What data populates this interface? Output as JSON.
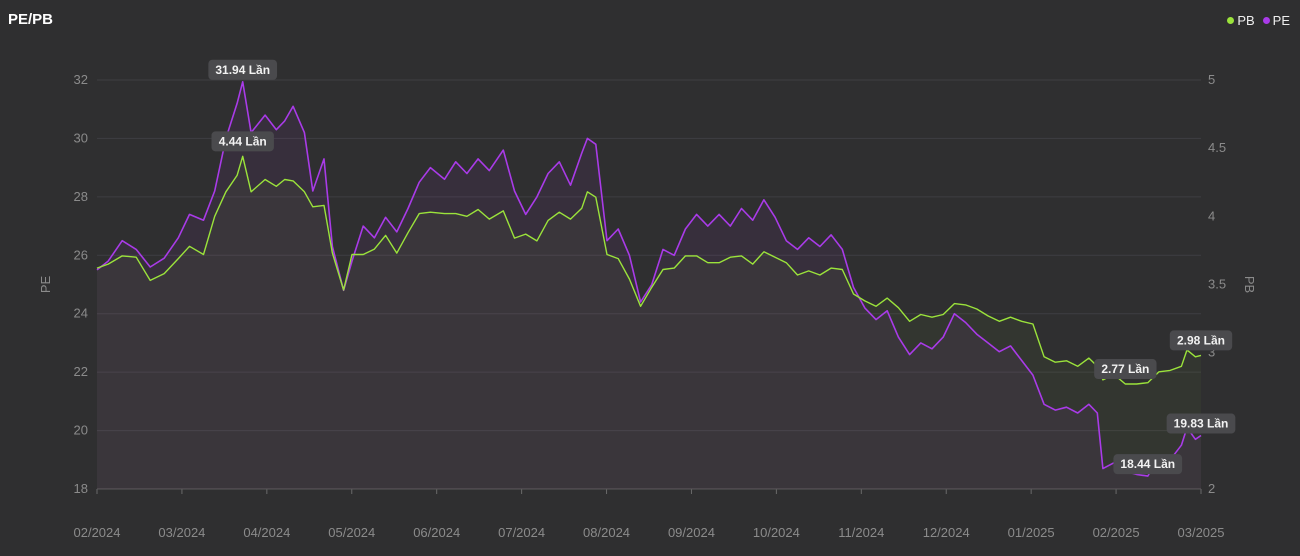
{
  "header": {
    "title": "PE/PB"
  },
  "colors": {
    "pb": "#9be33b",
    "pe": "#a93be8",
    "grid": "#3f3f42",
    "label_bg": "#4a4a4d",
    "background": "#2f2f30"
  },
  "chart_data": {
    "type": "line",
    "title": "PE/PB",
    "legend": {
      "placement": "top-right",
      "items": [
        "PB",
        "PE"
      ]
    },
    "y_left": {
      "label": "PE",
      "range": [
        18,
        32
      ],
      "ticks": [
        18,
        20,
        22,
        24,
        26,
        28,
        30,
        32
      ]
    },
    "y_right": {
      "label": "PB",
      "range": [
        2,
        5
      ],
      "ticks": [
        "2",
        "2.5",
        "3",
        "3.5",
        "4",
        "4.5",
        "5"
      ]
    },
    "x_ticks": [
      "02/2024",
      "03/2024",
      "04/2024",
      "05/2024",
      "06/2024",
      "07/2024",
      "08/2024",
      "09/2024",
      "10/2024",
      "11/2024",
      "12/2024",
      "01/2025",
      "02/2025",
      "03/2025"
    ],
    "x_range": [
      "2024-02-01",
      "2025-03-01"
    ],
    "grid": "horizontal",
    "series": [
      {
        "name": "PE",
        "axis": "left",
        "points": [
          [
            "2024-02-01",
            25.5
          ],
          [
            "2024-02-05",
            25.8
          ],
          [
            "2024-02-10",
            26.5
          ],
          [
            "2024-02-15",
            26.2
          ],
          [
            "2024-02-20",
            25.6
          ],
          [
            "2024-02-25",
            25.9
          ],
          [
            "2024-03-01",
            26.6
          ],
          [
            "2024-03-05",
            27.4
          ],
          [
            "2024-03-10",
            27.2
          ],
          [
            "2024-03-14",
            28.2
          ],
          [
            "2024-03-18",
            30.0
          ],
          [
            "2024-03-22",
            31.2
          ],
          [
            "2024-03-24",
            31.94
          ],
          [
            "2024-03-27",
            30.2
          ],
          [
            "2024-04-01",
            30.8
          ],
          [
            "2024-04-05",
            30.3
          ],
          [
            "2024-04-08",
            30.6
          ],
          [
            "2024-04-11",
            31.1
          ],
          [
            "2024-04-15",
            30.2
          ],
          [
            "2024-04-18",
            28.2
          ],
          [
            "2024-04-22",
            29.3
          ],
          [
            "2024-04-25",
            26.3
          ],
          [
            "2024-04-29",
            24.8
          ],
          [
            "2024-05-02",
            25.8
          ],
          [
            "2024-05-06",
            27.0
          ],
          [
            "2024-05-10",
            26.6
          ],
          [
            "2024-05-14",
            27.3
          ],
          [
            "2024-05-18",
            26.8
          ],
          [
            "2024-05-22",
            27.6
          ],
          [
            "2024-05-26",
            28.5
          ],
          [
            "2024-05-30",
            29.0
          ],
          [
            "2024-06-04",
            28.6
          ],
          [
            "2024-06-08",
            29.2
          ],
          [
            "2024-06-12",
            28.8
          ],
          [
            "2024-06-16",
            29.3
          ],
          [
            "2024-06-20",
            28.9
          ],
          [
            "2024-06-25",
            29.6
          ],
          [
            "2024-06-29",
            28.2
          ],
          [
            "2024-07-03",
            27.4
          ],
          [
            "2024-07-07",
            28.0
          ],
          [
            "2024-07-11",
            28.8
          ],
          [
            "2024-07-15",
            29.2
          ],
          [
            "2024-07-19",
            28.4
          ],
          [
            "2024-07-23",
            29.5
          ],
          [
            "2024-07-25",
            30.0
          ],
          [
            "2024-07-28",
            29.8
          ],
          [
            "2024-08-01",
            26.5
          ],
          [
            "2024-08-05",
            26.9
          ],
          [
            "2024-08-09",
            26.0
          ],
          [
            "2024-08-13",
            24.4
          ],
          [
            "2024-08-17",
            25.0
          ],
          [
            "2024-08-21",
            26.2
          ],
          [
            "2024-08-25",
            26.0
          ],
          [
            "2024-08-29",
            26.9
          ],
          [
            "2024-09-02",
            27.4
          ],
          [
            "2024-09-06",
            27.0
          ],
          [
            "2024-09-10",
            27.4
          ],
          [
            "2024-09-14",
            27.0
          ],
          [
            "2024-09-18",
            27.6
          ],
          [
            "2024-09-22",
            27.2
          ],
          [
            "2024-09-26",
            27.9
          ],
          [
            "2024-09-30",
            27.3
          ],
          [
            "2024-10-04",
            26.5
          ],
          [
            "2024-10-08",
            26.2
          ],
          [
            "2024-10-12",
            26.6
          ],
          [
            "2024-10-16",
            26.3
          ],
          [
            "2024-10-20",
            26.7
          ],
          [
            "2024-10-24",
            26.2
          ],
          [
            "2024-10-28",
            24.9
          ],
          [
            "2024-11-01",
            24.2
          ],
          [
            "2024-11-05",
            23.8
          ],
          [
            "2024-11-09",
            24.1
          ],
          [
            "2024-11-13",
            23.2
          ],
          [
            "2024-11-17",
            22.6
          ],
          [
            "2024-11-21",
            23.0
          ],
          [
            "2024-11-25",
            22.8
          ],
          [
            "2024-11-29",
            23.2
          ],
          [
            "2024-12-03",
            24.0
          ],
          [
            "2024-12-07",
            23.7
          ],
          [
            "2024-12-11",
            23.3
          ],
          [
            "2024-12-15",
            23.0
          ],
          [
            "2024-12-19",
            22.7
          ],
          [
            "2024-12-23",
            22.9
          ],
          [
            "2024-12-27",
            22.4
          ],
          [
            "2024-12-31",
            21.9
          ],
          [
            "2025-01-04",
            20.9
          ],
          [
            "2025-01-08",
            20.7
          ],
          [
            "2025-01-12",
            20.8
          ],
          [
            "2025-01-16",
            20.6
          ],
          [
            "2025-01-20",
            20.9
          ],
          [
            "2025-01-23",
            20.6
          ],
          [
            "2025-01-25",
            18.7
          ],
          [
            "2025-01-29",
            18.9
          ],
          [
            "2025-02-02",
            18.6
          ],
          [
            "2025-02-06",
            18.5
          ],
          [
            "2025-02-10",
            18.44
          ],
          [
            "2025-02-14",
            19.1
          ],
          [
            "2025-02-18",
            19.0
          ],
          [
            "2025-02-22",
            19.5
          ],
          [
            "2025-02-24",
            20.1
          ],
          [
            "2025-02-27",
            19.7
          ],
          [
            "2025-03-01",
            19.83
          ]
        ],
        "labels": [
          [
            "2024-03-24",
            "31.94 Lần"
          ],
          [
            "2025-02-10",
            "18.44 Lần"
          ],
          [
            "2025-03-01",
            "19.83 Lần"
          ]
        ]
      },
      {
        "name": "PB",
        "axis": "right",
        "points": [
          [
            "2024-02-01",
            3.62
          ],
          [
            "2024-02-05",
            3.65
          ],
          [
            "2024-02-10",
            3.71
          ],
          [
            "2024-02-15",
            3.7
          ],
          [
            "2024-02-20",
            3.53
          ],
          [
            "2024-02-25",
            3.58
          ],
          [
            "2024-03-01",
            3.69
          ],
          [
            "2024-03-05",
            3.78
          ],
          [
            "2024-03-10",
            3.72
          ],
          [
            "2024-03-14",
            4.0
          ],
          [
            "2024-03-18",
            4.18
          ],
          [
            "2024-03-22",
            4.3
          ],
          [
            "2024-03-24",
            4.44
          ],
          [
            "2024-03-27",
            4.18
          ],
          [
            "2024-04-01",
            4.27
          ],
          [
            "2024-04-05",
            4.22
          ],
          [
            "2024-04-08",
            4.27
          ],
          [
            "2024-04-11",
            4.26
          ],
          [
            "2024-04-15",
            4.18
          ],
          [
            "2024-04-18",
            4.07
          ],
          [
            "2024-04-22",
            4.08
          ],
          [
            "2024-04-25",
            3.73
          ],
          [
            "2024-04-29",
            3.46
          ],
          [
            "2024-05-02",
            3.72
          ],
          [
            "2024-05-06",
            3.72
          ],
          [
            "2024-05-10",
            3.76
          ],
          [
            "2024-05-14",
            3.86
          ],
          [
            "2024-05-18",
            3.73
          ],
          [
            "2024-05-22",
            3.88
          ],
          [
            "2024-05-26",
            4.02
          ],
          [
            "2024-05-30",
            4.03
          ],
          [
            "2024-06-04",
            4.02
          ],
          [
            "2024-06-08",
            4.02
          ],
          [
            "2024-06-12",
            4.0
          ],
          [
            "2024-06-16",
            4.05
          ],
          [
            "2024-06-20",
            3.98
          ],
          [
            "2024-06-25",
            4.04
          ],
          [
            "2024-06-29",
            3.84
          ],
          [
            "2024-07-03",
            3.87
          ],
          [
            "2024-07-07",
            3.82
          ],
          [
            "2024-07-11",
            3.97
          ],
          [
            "2024-07-15",
            4.03
          ],
          [
            "2024-07-19",
            3.98
          ],
          [
            "2024-07-23",
            4.06
          ],
          [
            "2024-07-25",
            4.18
          ],
          [
            "2024-07-28",
            4.14
          ],
          [
            "2024-08-01",
            3.72
          ],
          [
            "2024-08-05",
            3.69
          ],
          [
            "2024-08-09",
            3.54
          ],
          [
            "2024-08-13",
            3.34
          ],
          [
            "2024-08-17",
            3.48
          ],
          [
            "2024-08-21",
            3.61
          ],
          [
            "2024-08-25",
            3.62
          ],
          [
            "2024-08-29",
            3.71
          ],
          [
            "2024-09-02",
            3.71
          ],
          [
            "2024-09-06",
            3.66
          ],
          [
            "2024-09-10",
            3.66
          ],
          [
            "2024-09-14",
            3.7
          ],
          [
            "2024-09-18",
            3.71
          ],
          [
            "2024-09-22",
            3.65
          ],
          [
            "2024-09-26",
            3.74
          ],
          [
            "2024-09-30",
            3.7
          ],
          [
            "2024-10-04",
            3.66
          ],
          [
            "2024-10-08",
            3.57
          ],
          [
            "2024-10-12",
            3.6
          ],
          [
            "2024-10-16",
            3.57
          ],
          [
            "2024-10-20",
            3.62
          ],
          [
            "2024-10-24",
            3.61
          ],
          [
            "2024-10-28",
            3.43
          ],
          [
            "2024-11-01",
            3.38
          ],
          [
            "2024-11-05",
            3.34
          ],
          [
            "2024-11-09",
            3.4
          ],
          [
            "2024-11-13",
            3.33
          ],
          [
            "2024-11-17",
            3.23
          ],
          [
            "2024-11-21",
            3.28
          ],
          [
            "2024-11-25",
            3.26
          ],
          [
            "2024-11-29",
            3.28
          ],
          [
            "2024-12-03",
            3.36
          ],
          [
            "2024-12-07",
            3.35
          ],
          [
            "2024-12-11",
            3.32
          ],
          [
            "2024-12-15",
            3.27
          ],
          [
            "2024-12-19",
            3.23
          ],
          [
            "2024-12-23",
            3.26
          ],
          [
            "2024-12-27",
            3.23
          ],
          [
            "2024-12-31",
            3.21
          ],
          [
            "2025-01-04",
            2.97
          ],
          [
            "2025-01-08",
            2.93
          ],
          [
            "2025-01-12",
            2.94
          ],
          [
            "2025-01-16",
            2.9
          ],
          [
            "2025-01-20",
            2.96
          ],
          [
            "2025-01-23",
            2.9
          ],
          [
            "2025-01-25",
            2.8
          ],
          [
            "2025-01-29",
            2.84
          ],
          [
            "2025-02-02",
            2.77
          ],
          [
            "2025-02-06",
            2.77
          ],
          [
            "2025-02-10",
            2.78
          ],
          [
            "2025-02-14",
            2.86
          ],
          [
            "2025-02-18",
            2.87
          ],
          [
            "2025-02-22",
            2.9
          ],
          [
            "2025-02-24",
            3.02
          ],
          [
            "2025-02-27",
            2.97
          ],
          [
            "2025-03-01",
            2.98
          ]
        ],
        "labels": [
          [
            "2024-03-24",
            "4.44 Lần"
          ],
          [
            "2025-02-02",
            "2.77 Lần"
          ],
          [
            "2025-03-01",
            "2.98 Lần"
          ]
        ]
      }
    ]
  }
}
